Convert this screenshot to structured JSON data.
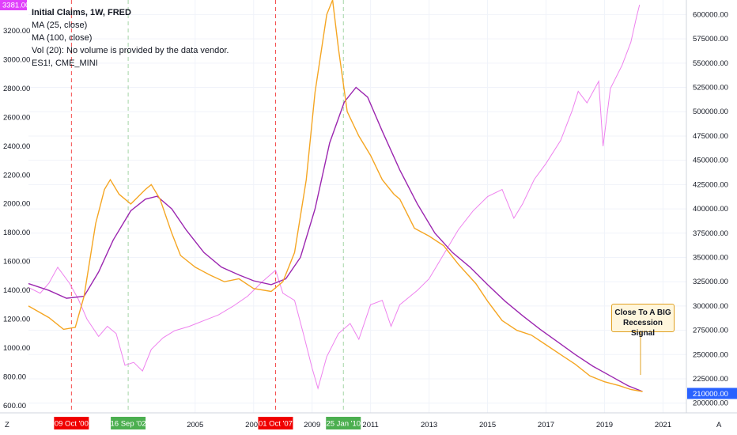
{
  "legend": {
    "title": "Initial Claims, 1W, FRED",
    "ma25": "MA (25, close)",
    "ma100": "MA (100, close)",
    "vol": "Vol (20): No volume is provided by the data vendor.",
    "es": "ES1!, CME_MINI"
  },
  "left_axis": {
    "labels": [
      "3200.00",
      "3000.00",
      "2800.00",
      "2600.00",
      "2400.00",
      "2200.00",
      "2000.00",
      "1800.00",
      "1600.00",
      "1400.00",
      "1200.00",
      "1000.00",
      "800.00",
      "600.00"
    ],
    "current_badge": "3381.00",
    "badge_color": "#e040fb"
  },
  "right_axis": {
    "labels": [
      "600000.00",
      "575000.00",
      "550000.00",
      "525000.00",
      "500000.00",
      "475000.00",
      "450000.00",
      "425000.00",
      "400000.00",
      "375000.00",
      "350000.00",
      "325000.00",
      "300000.00",
      "275000.00",
      "250000.00",
      "225000.00",
      "200000.00"
    ],
    "current_badge": "210000.00",
    "badge_color": "#2962ff"
  },
  "time_axis": {
    "labels": [
      "2005",
      "2007",
      "2009",
      "2011",
      "2013",
      "2015",
      "2017",
      "2019",
      "2021"
    ],
    "badges": [
      {
        "text": "09 Oct '00",
        "color": "#f00000"
      },
      {
        "text": "16 Sep '02",
        "color": "#4caf50"
      },
      {
        "text": "01 Oct '07",
        "color": "#f00000"
      },
      {
        "text": "25 Jan '10",
        "color": "#4caf50"
      }
    ],
    "corner_left": "Z",
    "corner_right": "A"
  },
  "annotation": {
    "line1": "Close To A BIG",
    "line2": "Recession Signal"
  },
  "chart_data": {
    "type": "line",
    "title": "Initial Claims, 1W, FRED",
    "x_range": [
      1999.3,
      2021.8
    ],
    "left_ylim": [
      550,
      3381
    ],
    "right_ylim": [
      190000,
      615000
    ],
    "grid": true,
    "series": [
      {
        "name": "MA (25, close)",
        "color": "#f5a623",
        "axis": "right",
        "points": [
          [
            1999.3,
            300000
          ],
          [
            2000.0,
            288000
          ],
          [
            2000.5,
            276000
          ],
          [
            2000.9,
            278000
          ],
          [
            2001.2,
            310000
          ],
          [
            2001.6,
            385000
          ],
          [
            2001.9,
            420000
          ],
          [
            2002.1,
            430000
          ],
          [
            2002.4,
            415000
          ],
          [
            2002.8,
            405000
          ],
          [
            2003.3,
            420000
          ],
          [
            2003.5,
            425000
          ],
          [
            2003.8,
            410000
          ],
          [
            2004.2,
            375000
          ],
          [
            2004.5,
            352000
          ],
          [
            2005.0,
            340000
          ],
          [
            2005.5,
            332000
          ],
          [
            2006.0,
            325000
          ],
          [
            2006.5,
            328000
          ],
          [
            2007.0,
            318000
          ],
          [
            2007.6,
            315000
          ],
          [
            2008.0,
            325000
          ],
          [
            2008.4,
            355000
          ],
          [
            2008.8,
            430000
          ],
          [
            2009.1,
            520000
          ],
          [
            2009.5,
            600000
          ],
          [
            2009.7,
            615000
          ],
          [
            2009.9,
            565000
          ],
          [
            2010.2,
            500000
          ],
          [
            2010.6,
            475000
          ],
          [
            2011.0,
            455000
          ],
          [
            2011.4,
            430000
          ],
          [
            2011.8,
            415000
          ],
          [
            2012.0,
            410000
          ],
          [
            2012.5,
            380000
          ],
          [
            2013.0,
            372000
          ],
          [
            2013.5,
            362000
          ],
          [
            2014.0,
            343000
          ],
          [
            2014.6,
            323000
          ],
          [
            2015.0,
            305000
          ],
          [
            2015.5,
            285000
          ],
          [
            2016.0,
            275000
          ],
          [
            2016.5,
            270000
          ],
          [
            2017.0,
            260000
          ],
          [
            2017.6,
            248000
          ],
          [
            2018.0,
            240000
          ],
          [
            2018.5,
            228000
          ],
          [
            2019.0,
            222000
          ],
          [
            2019.5,
            218000
          ],
          [
            2019.9,
            214000
          ],
          [
            2020.3,
            212000
          ]
        ]
      },
      {
        "name": "MA (100, close)",
        "color": "#9c27b0",
        "axis": "right",
        "points": [
          [
            1999.3,
            323000
          ],
          [
            2000.0,
            316000
          ],
          [
            2000.6,
            308000
          ],
          [
            2001.2,
            310000
          ],
          [
            2001.7,
            335000
          ],
          [
            2002.2,
            368000
          ],
          [
            2002.8,
            398000
          ],
          [
            2003.3,
            410000
          ],
          [
            2003.7,
            413000
          ],
          [
            2004.2,
            400000
          ],
          [
            2004.7,
            378000
          ],
          [
            2005.3,
            355000
          ],
          [
            2005.9,
            340000
          ],
          [
            2006.5,
            332000
          ],
          [
            2007.0,
            326000
          ],
          [
            2007.6,
            322000
          ],
          [
            2008.1,
            328000
          ],
          [
            2008.6,
            350000
          ],
          [
            2009.1,
            400000
          ],
          [
            2009.6,
            468000
          ],
          [
            2010.1,
            510000
          ],
          [
            2010.5,
            525000
          ],
          [
            2010.9,
            515000
          ],
          [
            2011.4,
            480000
          ],
          [
            2012.0,
            440000
          ],
          [
            2012.6,
            405000
          ],
          [
            2013.2,
            375000
          ],
          [
            2013.8,
            355000
          ],
          [
            2014.4,
            340000
          ],
          [
            2015.0,
            322000
          ],
          [
            2015.6,
            305000
          ],
          [
            2016.2,
            290000
          ],
          [
            2016.8,
            276000
          ],
          [
            2017.4,
            263000
          ],
          [
            2018.0,
            250000
          ],
          [
            2018.6,
            238000
          ],
          [
            2019.2,
            228000
          ],
          [
            2019.8,
            218000
          ],
          [
            2020.3,
            212000
          ]
        ]
      },
      {
        "name": "ES1!, CME_MINI",
        "color": "#ee82ee",
        "axis": "left",
        "points": [
          [
            1999.3,
            1420
          ],
          [
            1999.7,
            1380
          ],
          [
            2000.0,
            1450
          ],
          [
            2000.3,
            1560
          ],
          [
            2000.7,
            1450
          ],
          [
            2001.0,
            1340
          ],
          [
            2001.3,
            1200
          ],
          [
            2001.7,
            1080
          ],
          [
            2002.0,
            1150
          ],
          [
            2002.3,
            1100
          ],
          [
            2002.6,
            880
          ],
          [
            2002.9,
            900
          ],
          [
            2003.2,
            840
          ],
          [
            2003.5,
            990
          ],
          [
            2003.9,
            1070
          ],
          [
            2004.3,
            1120
          ],
          [
            2004.8,
            1150
          ],
          [
            2005.3,
            1190
          ],
          [
            2005.8,
            1230
          ],
          [
            2006.3,
            1290
          ],
          [
            2006.8,
            1360
          ],
          [
            2007.3,
            1460
          ],
          [
            2007.75,
            1540
          ],
          [
            2008.0,
            1380
          ],
          [
            2008.4,
            1330
          ],
          [
            2008.7,
            1100
          ],
          [
            2009.0,
            860
          ],
          [
            2009.2,
            720
          ],
          [
            2009.5,
            940
          ],
          [
            2009.9,
            1100
          ],
          [
            2010.3,
            1170
          ],
          [
            2010.6,
            1060
          ],
          [
            2011.0,
            1300
          ],
          [
            2011.4,
            1330
          ],
          [
            2011.7,
            1150
          ],
          [
            2012.0,
            1300
          ],
          [
            2012.6,
            1400
          ],
          [
            2013.0,
            1480
          ],
          [
            2013.5,
            1650
          ],
          [
            2014.0,
            1820
          ],
          [
            2014.5,
            1950
          ],
          [
            2015.0,
            2050
          ],
          [
            2015.5,
            2100
          ],
          [
            2015.9,
            1900
          ],
          [
            2016.2,
            2000
          ],
          [
            2016.6,
            2170
          ],
          [
            2017.0,
            2280
          ],
          [
            2017.5,
            2440
          ],
          [
            2017.9,
            2650
          ],
          [
            2018.1,
            2780
          ],
          [
            2018.4,
            2700
          ],
          [
            2018.8,
            2850
          ],
          [
            2018.95,
            2400
          ],
          [
            2019.2,
            2800
          ],
          [
            2019.6,
            2960
          ],
          [
            2019.9,
            3120
          ],
          [
            2020.1,
            3300
          ],
          [
            2020.2,
            3381
          ]
        ]
      }
    ],
    "vertical_markers": [
      {
        "date": "09 Oct '00",
        "x": 2000.77,
        "color": "#f00000"
      },
      {
        "date": "16 Sep '02",
        "x": 2002.71,
        "color": "#4caf50"
      },
      {
        "date": "01 Oct '07",
        "x": 2007.75,
        "color": "#f00000"
      },
      {
        "date": "25 Jan '10",
        "x": 2010.07,
        "color": "#4caf50"
      }
    ],
    "annotation": {
      "text": "Close To A BIG Recession Signal",
      "x": 2020.2,
      "y": 225000
    }
  }
}
